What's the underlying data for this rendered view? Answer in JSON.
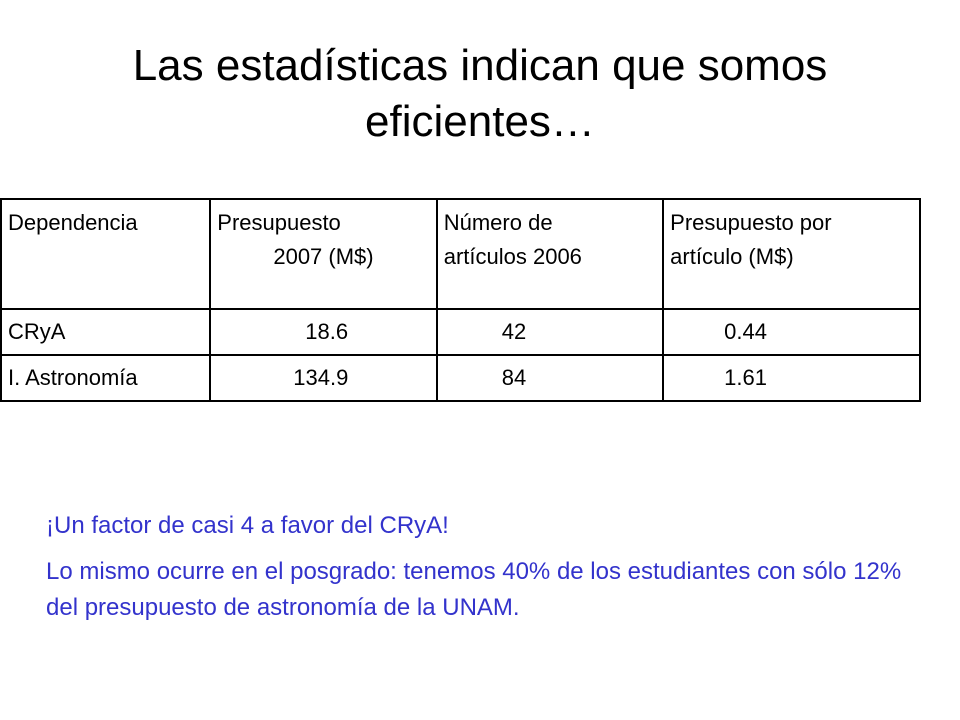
{
  "slide": {
    "title_line1": "Las estadísticas indican que somos",
    "title_line2": "eficientes…"
  },
  "table": {
    "headers": {
      "dependencia": "Dependencia",
      "presupuesto_line1": "Presupuesto",
      "presupuesto_line2": "2007 (M$)",
      "articulos_line1": "Número de",
      "articulos_line2": "artículos 2006",
      "ppa_line1": "Presupuesto por",
      "ppa_line2": "artículo (M$)"
    },
    "rows": [
      {
        "dependencia": "CRyA",
        "presupuesto": "18.6",
        "articulos": "42",
        "ppa": "0.44"
      },
      {
        "dependencia": "I. Astronomía",
        "presupuesto": "134.9",
        "articulos": "84",
        "ppa": "1.61"
      }
    ]
  },
  "notes": {
    "line1": "¡Un factor de casi 4 a favor del CRyA!",
    "line2": "Lo mismo ocurre en el posgrado: tenemos 40% de los estudiantes con sólo 12% del presupuesto de astronomía de la UNAM."
  },
  "colors": {
    "text": "#000000",
    "notes_text": "#3333cc",
    "background": "#ffffff"
  }
}
